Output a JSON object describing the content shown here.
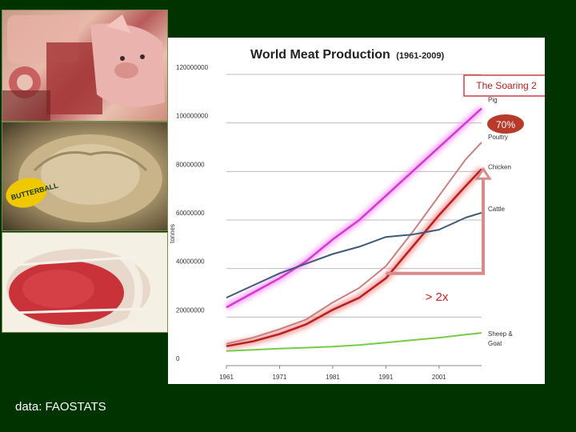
{
  "footer": {
    "source_text": "data: FAOSTATS"
  },
  "photos": [
    {
      "icon": "pork-cuts-and-pig-head"
    },
    {
      "icon": "whole-turkey",
      "tag_text": "BUTTERBALL"
    },
    {
      "icon": "beef-roast"
    }
  ],
  "annotations": {
    "callout": "The Soaring 2",
    "badge": "70%",
    "growth": "> 2x",
    "colors": {
      "callout_border": "#d04040",
      "badge_fill": "#b83a2a",
      "arrow": "#d98a8a",
      "growth_text": "#cc2222"
    }
  },
  "chart_data": {
    "type": "line",
    "title": "World Meat Production",
    "subtitle": "(1961-2009)",
    "xlabel": "",
    "ylabel": "tonnes",
    "xlim": [
      1961,
      2009
    ],
    "ylim": [
      0,
      120000000
    ],
    "grid": true,
    "legend": "labels at right end of lines",
    "y_ticks": [
      "0",
      "20000000",
      "40000000",
      "60000000",
      "80000000",
      "100000000",
      "120000000"
    ],
    "y_tick_values": [
      0,
      20000000,
      40000000,
      60000000,
      80000000,
      100000000,
      120000000
    ],
    "x_ticks": [
      "1961",
      "1971",
      "1981",
      "1991",
      "2001"
    ],
    "x_tick_values": [
      1961,
      1971,
      1981,
      1991,
      2001
    ],
    "x": [
      1961,
      1966,
      1971,
      1976,
      1981,
      1986,
      1991,
      1996,
      2001,
      2006,
      2009
    ],
    "series": [
      {
        "name": "Pig",
        "color": "#d13bd1",
        "glow": "#ff8cff",
        "values": [
          24000000,
          30000000,
          36000000,
          43000000,
          52000000,
          60000000,
          70000000,
          80000000,
          90000000,
          100000000,
          106000000
        ]
      },
      {
        "name": "Poultry",
        "color": "#c98080",
        "glow": null,
        "values": [
          9000000,
          11500000,
          15000000,
          19000000,
          26000000,
          32000000,
          41000000,
          55000000,
          70000000,
          85000000,
          92000000
        ]
      },
      {
        "name": "Chicken",
        "color": "#b82020",
        "glow": "#f08080",
        "values": [
          8000000,
          10000000,
          13000000,
          17000000,
          23000000,
          28000000,
          36000000,
          49000000,
          62000000,
          74000000,
          81000000
        ]
      },
      {
        "name": "Cattle",
        "color": "#3f5a78",
        "glow": null,
        "values": [
          28000000,
          33000000,
          38000000,
          42000000,
          46000000,
          49000000,
          53000000,
          54000000,
          56000000,
          61000000,
          63000000
        ]
      },
      {
        "name": "Sheep & Goat",
        "color": "#77cc44",
        "glow": null,
        "values": [
          6000000,
          6500000,
          7000000,
          7400000,
          7800000,
          8500000,
          9500000,
          10500000,
          11500000,
          12800000,
          13500000
        ]
      }
    ]
  }
}
